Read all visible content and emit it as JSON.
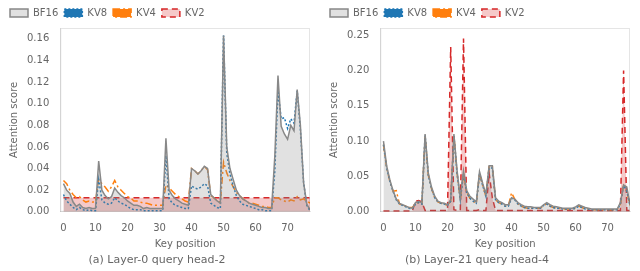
{
  "chart_data": [
    {
      "type": "line",
      "title": "(a) Layer-0 query head-2",
      "x_label": "Key position",
      "y_label": "Attention score",
      "x": [
        0,
        1,
        2,
        3,
        4,
        5,
        6,
        7,
        8,
        9,
        10,
        11,
        12,
        13,
        14,
        15,
        16,
        17,
        18,
        19,
        20,
        21,
        22,
        23,
        24,
        25,
        26,
        27,
        28,
        29,
        30,
        31,
        32,
        33,
        34,
        35,
        36,
        37,
        38,
        39,
        40,
        41,
        42,
        43,
        44,
        45,
        46,
        47,
        48,
        49,
        50,
        51,
        52,
        53,
        54,
        55,
        56,
        57,
        58,
        59,
        60,
        61,
        62,
        63,
        64,
        65,
        66,
        67,
        68,
        69,
        70,
        71,
        72,
        73,
        74,
        75,
        76,
        77
      ],
      "xlim": [
        -1,
        77
      ],
      "xticks": [
        0,
        10,
        20,
        30,
        40,
        50,
        60,
        70
      ],
      "ylim": [
        0,
        0.17
      ],
      "yticks": [
        {
          "value": 0.0,
          "label": "0.00"
        },
        {
          "value": 0.02,
          "label": "0.02"
        },
        {
          "value": 0.04,
          "label": "0.04"
        },
        {
          "value": 0.06,
          "label": "0.06"
        },
        {
          "value": 0.08,
          "label": "0.08"
        },
        {
          "value": 0.1,
          "label": "0.10"
        },
        {
          "value": 0.12,
          "label": "0.12"
        },
        {
          "value": 0.14,
          "label": "0.14"
        },
        {
          "value": 0.16,
          "label": "0.16"
        }
      ],
      "grid": false,
      "legend": "upper left",
      "series": [
        {
          "name": "BF16",
          "color": "#888888",
          "line_style": "solid",
          "type": "area",
          "values": [
            0.026,
            0.02,
            0.017,
            0.009,
            0.005,
            0.007,
            0.004,
            0.003,
            0.004,
            0.003,
            0.003,
            0.047,
            0.02,
            0.015,
            0.012,
            0.014,
            0.022,
            0.018,
            0.015,
            0.013,
            0.01,
            0.008,
            0.006,
            0.006,
            0.005,
            0.003,
            0.004,
            0.003,
            0.003,
            0.003,
            0.003,
            0.003,
            0.068,
            0.02,
            0.015,
            0.012,
            0.01,
            0.008,
            0.007,
            0.006,
            0.04,
            0.038,
            0.035,
            0.038,
            0.042,
            0.04,
            0.016,
            0.013,
            0.01,
            0.008,
            0.163,
            0.06,
            0.04,
            0.03,
            0.02,
            0.015,
            0.012,
            0.01,
            0.008,
            0.007,
            0.006,
            0.005,
            0.004,
            0.004,
            0.003,
            0.003,
            0.051,
            0.126,
            0.079,
            0.072,
            0.067,
            0.08,
            0.075,
            0.113,
            0.08,
            0.027,
            0.007,
            0.002
          ]
        },
        {
          "name": "KV8",
          "color": "#1f77b4",
          "line_style": "dotted",
          "type": "line",
          "values": [
            0.016,
            0.01,
            0.007,
            0.004,
            0.002,
            0.004,
            0.002,
            0.001,
            0.002,
            0.001,
            0.001,
            0.03,
            0.011,
            0.008,
            0.007,
            0.008,
            0.013,
            0.01,
            0.008,
            0.007,
            0.005,
            0.003,
            0.002,
            0.002,
            0.002,
            0.001,
            0.001,
            0.001,
            0.001,
            0.001,
            0.001,
            0.001,
            0.052,
            0.012,
            0.008,
            0.006,
            0.005,
            0.004,
            0.003,
            0.003,
            0.024,
            0.022,
            0.021,
            0.023,
            0.026,
            0.024,
            0.008,
            0.006,
            0.004,
            0.003,
            0.163,
            0.054,
            0.035,
            0.024,
            0.015,
            0.01,
            0.007,
            0.006,
            0.005,
            0.004,
            0.003,
            0.002,
            0.002,
            0.001,
            0.001,
            0.001,
            0.037,
            0.112,
            0.086,
            0.087,
            0.077,
            0.086,
            0.082,
            0.112,
            0.076,
            0.027,
            0.006,
            0.001
          ]
        },
        {
          "name": "KV4",
          "color": "#ff7f0e",
          "line_style": "dashdot",
          "type": "line",
          "values": [
            0.029,
            0.026,
            0.02,
            0.016,
            0.013,
            0.014,
            0.011,
            0.009,
            0.01,
            0.009,
            0.009,
            0.03,
            0.026,
            0.023,
            0.019,
            0.023,
            0.029,
            0.023,
            0.02,
            0.017,
            0.014,
            0.013,
            0.01,
            0.01,
            0.009,
            0.008,
            0.008,
            0.007,
            0.006,
            0.006,
            0.006,
            0.006,
            0.025,
            0.022,
            0.019,
            0.016,
            0.014,
            0.012,
            0.01,
            0.009,
            0.04,
            0.038,
            0.035,
            0.038,
            0.042,
            0.039,
            0.015,
            0.013,
            0.01,
            0.009,
            0.046,
            0.036,
            0.029,
            0.023,
            0.018,
            0.015,
            0.012,
            0.01,
            0.008,
            0.008,
            0.007,
            0.006,
            0.005,
            0.005,
            0.004,
            0.004,
            0.013,
            0.013,
            0.011,
            0.01,
            0.009,
            0.011,
            0.01,
            0.014,
            0.011,
            0.012,
            0.01,
            0.008
          ]
        },
        {
          "name": "KV2",
          "color": "#d62728",
          "line_style": "dashed",
          "type": "area",
          "values": [
            0.013,
            0.013,
            0.013,
            0.013,
            0.013,
            0.013,
            0.013,
            0.013,
            0.013,
            0.013,
            0.013,
            0.013,
            0.013,
            0.013,
            0.013,
            0.013,
            0.013,
            0.013,
            0.013,
            0.013,
            0.013,
            0.013,
            0.013,
            0.013,
            0.013,
            0.013,
            0.013,
            0.013,
            0.013,
            0.013,
            0.013,
            0.013,
            0.013,
            0.013,
            0.013,
            0.013,
            0.013,
            0.013,
            0.013,
            0.013,
            0.013,
            0.013,
            0.013,
            0.013,
            0.013,
            0.013,
            0.013,
            0.013,
            0.013,
            0.013,
            0.013,
            0.013,
            0.013,
            0.013,
            0.013,
            0.013,
            0.013,
            0.013,
            0.013,
            0.013,
            0.013,
            0.013,
            0.013,
            0.013,
            0.013,
            0.013,
            0.013,
            0.013,
            0.013,
            0.013,
            0.013,
            0.013,
            0.013,
            0.013,
            0.013,
            0.013,
            0.013,
            0.013
          ]
        }
      ]
    },
    {
      "type": "line",
      "title": "(b) Layer-21 query head-4",
      "x_label": "Key position",
      "y_label": "Attention score",
      "x": [
        0,
        1,
        2,
        3,
        4,
        5,
        6,
        7,
        8,
        9,
        10,
        11,
        12,
        13,
        14,
        15,
        16,
        17,
        18,
        19,
        20,
        21,
        22,
        23,
        24,
        25,
        26,
        27,
        28,
        29,
        30,
        31,
        32,
        33,
        34,
        35,
        36,
        37,
        38,
        39,
        40,
        41,
        42,
        43,
        44,
        45,
        46,
        47,
        48,
        49,
        50,
        51,
        52,
        53,
        54,
        55,
        56,
        57,
        58,
        59,
        60,
        61,
        62,
        63,
        64,
        65,
        66,
        67,
        68,
        69,
        70,
        71,
        72,
        73,
        74,
        75,
        76,
        77
      ],
      "xlim": [
        -1,
        77
      ],
      "xticks": [
        0,
        10,
        20,
        30,
        40,
        50,
        60,
        70
      ],
      "ylim": [
        0,
        0.26
      ],
      "yticks": [
        {
          "value": 0.0,
          "label": "0.00"
        },
        {
          "value": 0.05,
          "label": "0.05"
        },
        {
          "value": 0.1,
          "label": "0.10"
        },
        {
          "value": 0.15,
          "label": "0.15"
        },
        {
          "value": 0.2,
          "label": "0.20"
        },
        {
          "value": 0.25,
          "label": "0.25"
        }
      ],
      "grid": false,
      "legend": "upper left",
      "series": [
        {
          "name": "BF16",
          "color": "#888888",
          "line_style": "solid",
          "type": "area",
          "values": [
            0.1,
            0.065,
            0.045,
            0.03,
            0.018,
            0.012,
            0.01,
            0.008,
            0.006,
            0.005,
            0.013,
            0.015,
            0.013,
            0.11,
            0.055,
            0.035,
            0.022,
            0.015,
            0.013,
            0.012,
            0.01,
            0.017,
            0.11,
            0.058,
            0.02,
            0.058,
            0.03,
            0.022,
            0.018,
            0.014,
            0.057,
            0.04,
            0.025,
            0.065,
            0.065,
            0.02,
            0.015,
            0.013,
            0.01,
            0.01,
            0.02,
            0.018,
            0.013,
            0.01,
            0.008,
            0.007,
            0.007,
            0.006,
            0.006,
            0.006,
            0.01,
            0.013,
            0.01,
            0.008,
            0.007,
            0.006,
            0.005,
            0.005,
            0.005,
            0.005,
            0.007,
            0.01,
            0.008,
            0.006,
            0.005,
            0.004,
            0.004,
            0.004,
            0.004,
            0.004,
            0.004,
            0.004,
            0.004,
            0.004,
            0.013,
            0.038,
            0.035,
            0.01
          ]
        },
        {
          "name": "KV8",
          "color": "#1f77b4",
          "line_style": "dotted",
          "type": "line",
          "values": [
            0.095,
            0.062,
            0.043,
            0.029,
            0.017,
            0.011,
            0.009,
            0.007,
            0.005,
            0.004,
            0.011,
            0.013,
            0.011,
            0.108,
            0.052,
            0.033,
            0.02,
            0.014,
            0.012,
            0.011,
            0.009,
            0.015,
            0.108,
            0.054,
            0.017,
            0.054,
            0.027,
            0.019,
            0.015,
            0.012,
            0.054,
            0.037,
            0.022,
            0.062,
            0.062,
            0.017,
            0.013,
            0.011,
            0.008,
            0.008,
            0.019,
            0.017,
            0.011,
            0.008,
            0.006,
            0.005,
            0.005,
            0.005,
            0.005,
            0.005,
            0.009,
            0.011,
            0.008,
            0.006,
            0.005,
            0.005,
            0.004,
            0.004,
            0.004,
            0.004,
            0.005,
            0.008,
            0.006,
            0.004,
            0.004,
            0.003,
            0.003,
            0.003,
            0.003,
            0.003,
            0.003,
            0.003,
            0.003,
            0.003,
            0.011,
            0.037,
            0.029,
            0.009
          ]
        },
        {
          "name": "KV4",
          "color": "#ff7f0e",
          "line_style": "dashdot",
          "type": "line",
          "values": [
            0.095,
            0.062,
            0.043,
            0.029,
            0.03,
            0.011,
            0.009,
            0.008,
            0.006,
            0.006,
            0.011,
            0.013,
            0.011,
            0.108,
            0.052,
            0.033,
            0.02,
            0.014,
            0.012,
            0.011,
            0.009,
            0.015,
            0.108,
            0.054,
            0.017,
            0.054,
            0.027,
            0.019,
            0.015,
            0.012,
            0.054,
            0.037,
            0.022,
            0.064,
            0.065,
            0.017,
            0.013,
            0.011,
            0.008,
            0.008,
            0.027,
            0.018,
            0.011,
            0.008,
            0.006,
            0.005,
            0.005,
            0.005,
            0.005,
            0.005,
            0.009,
            0.011,
            0.008,
            0.006,
            0.005,
            0.005,
            0.004,
            0.004,
            0.004,
            0.004,
            0.005,
            0.008,
            0.006,
            0.004,
            0.004,
            0.003,
            0.003,
            0.003,
            0.003,
            0.003,
            0.003,
            0.003,
            0.003,
            0.003,
            0.011,
            0.037,
            0.029,
            0.009
          ]
        },
        {
          "name": "KV2",
          "color": "#d62728",
          "line_style": "dashed",
          "type": "area",
          "values": [
            0.001,
            0.001,
            0.001,
            0.001,
            0.001,
            0.001,
            0.001,
            0.001,
            0.001,
            0.001,
            0.015,
            0.016,
            0.014,
            0.002,
            0.002,
            0.002,
            0.002,
            0.002,
            0.002,
            0.002,
            0.002,
            0.233,
            0.003,
            0.002,
            0.002,
            0.245,
            0.002,
            0.002,
            0.002,
            0.002,
            0.003,
            0.002,
            0.002,
            0.055,
            0.02,
            0.002,
            0.002,
            0.002,
            0.002,
            0.002,
            0.002,
            0.002,
            0.002,
            0.002,
            0.002,
            0.002,
            0.002,
            0.002,
            0.002,
            0.002,
            0.002,
            0.002,
            0.002,
            0.002,
            0.002,
            0.002,
            0.002,
            0.002,
            0.002,
            0.002,
            0.002,
            0.002,
            0.002,
            0.002,
            0.002,
            0.002,
            0.002,
            0.002,
            0.002,
            0.002,
            0.002,
            0.002,
            0.002,
            0.002,
            0.002,
            0.2,
            0.002,
            0.002
          ]
        }
      ]
    }
  ]
}
